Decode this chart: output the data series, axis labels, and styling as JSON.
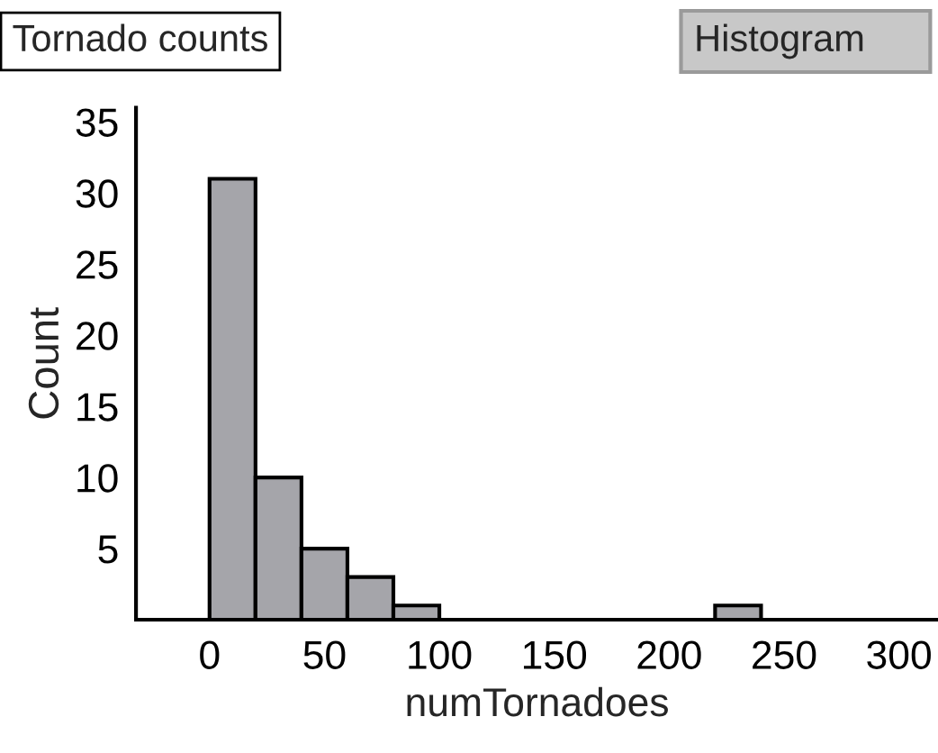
{
  "chart_data": {
    "type": "histogram",
    "title": "Tornado counts",
    "xlabel": "numTornadoes",
    "ylabel": "Count",
    "bins": [
      0,
      20,
      40,
      60,
      80,
      100,
      120,
      140,
      160,
      180,
      200,
      220,
      240
    ],
    "values": [
      31,
      10,
      5,
      3,
      1,
      0,
      0,
      0,
      0,
      0,
      0,
      1
    ],
    "color": "#a5a5aa",
    "xlim": [
      -32,
      317
    ],
    "xticks": [
      0,
      50,
      100,
      150,
      200,
      250,
      300
    ],
    "ylim": [
      0,
      36
    ],
    "yticks": [
      5,
      10,
      15,
      20,
      25,
      30,
      35
    ],
    "grid": false,
    "legend": false,
    "annotations": [
      "Histogram"
    ]
  }
}
